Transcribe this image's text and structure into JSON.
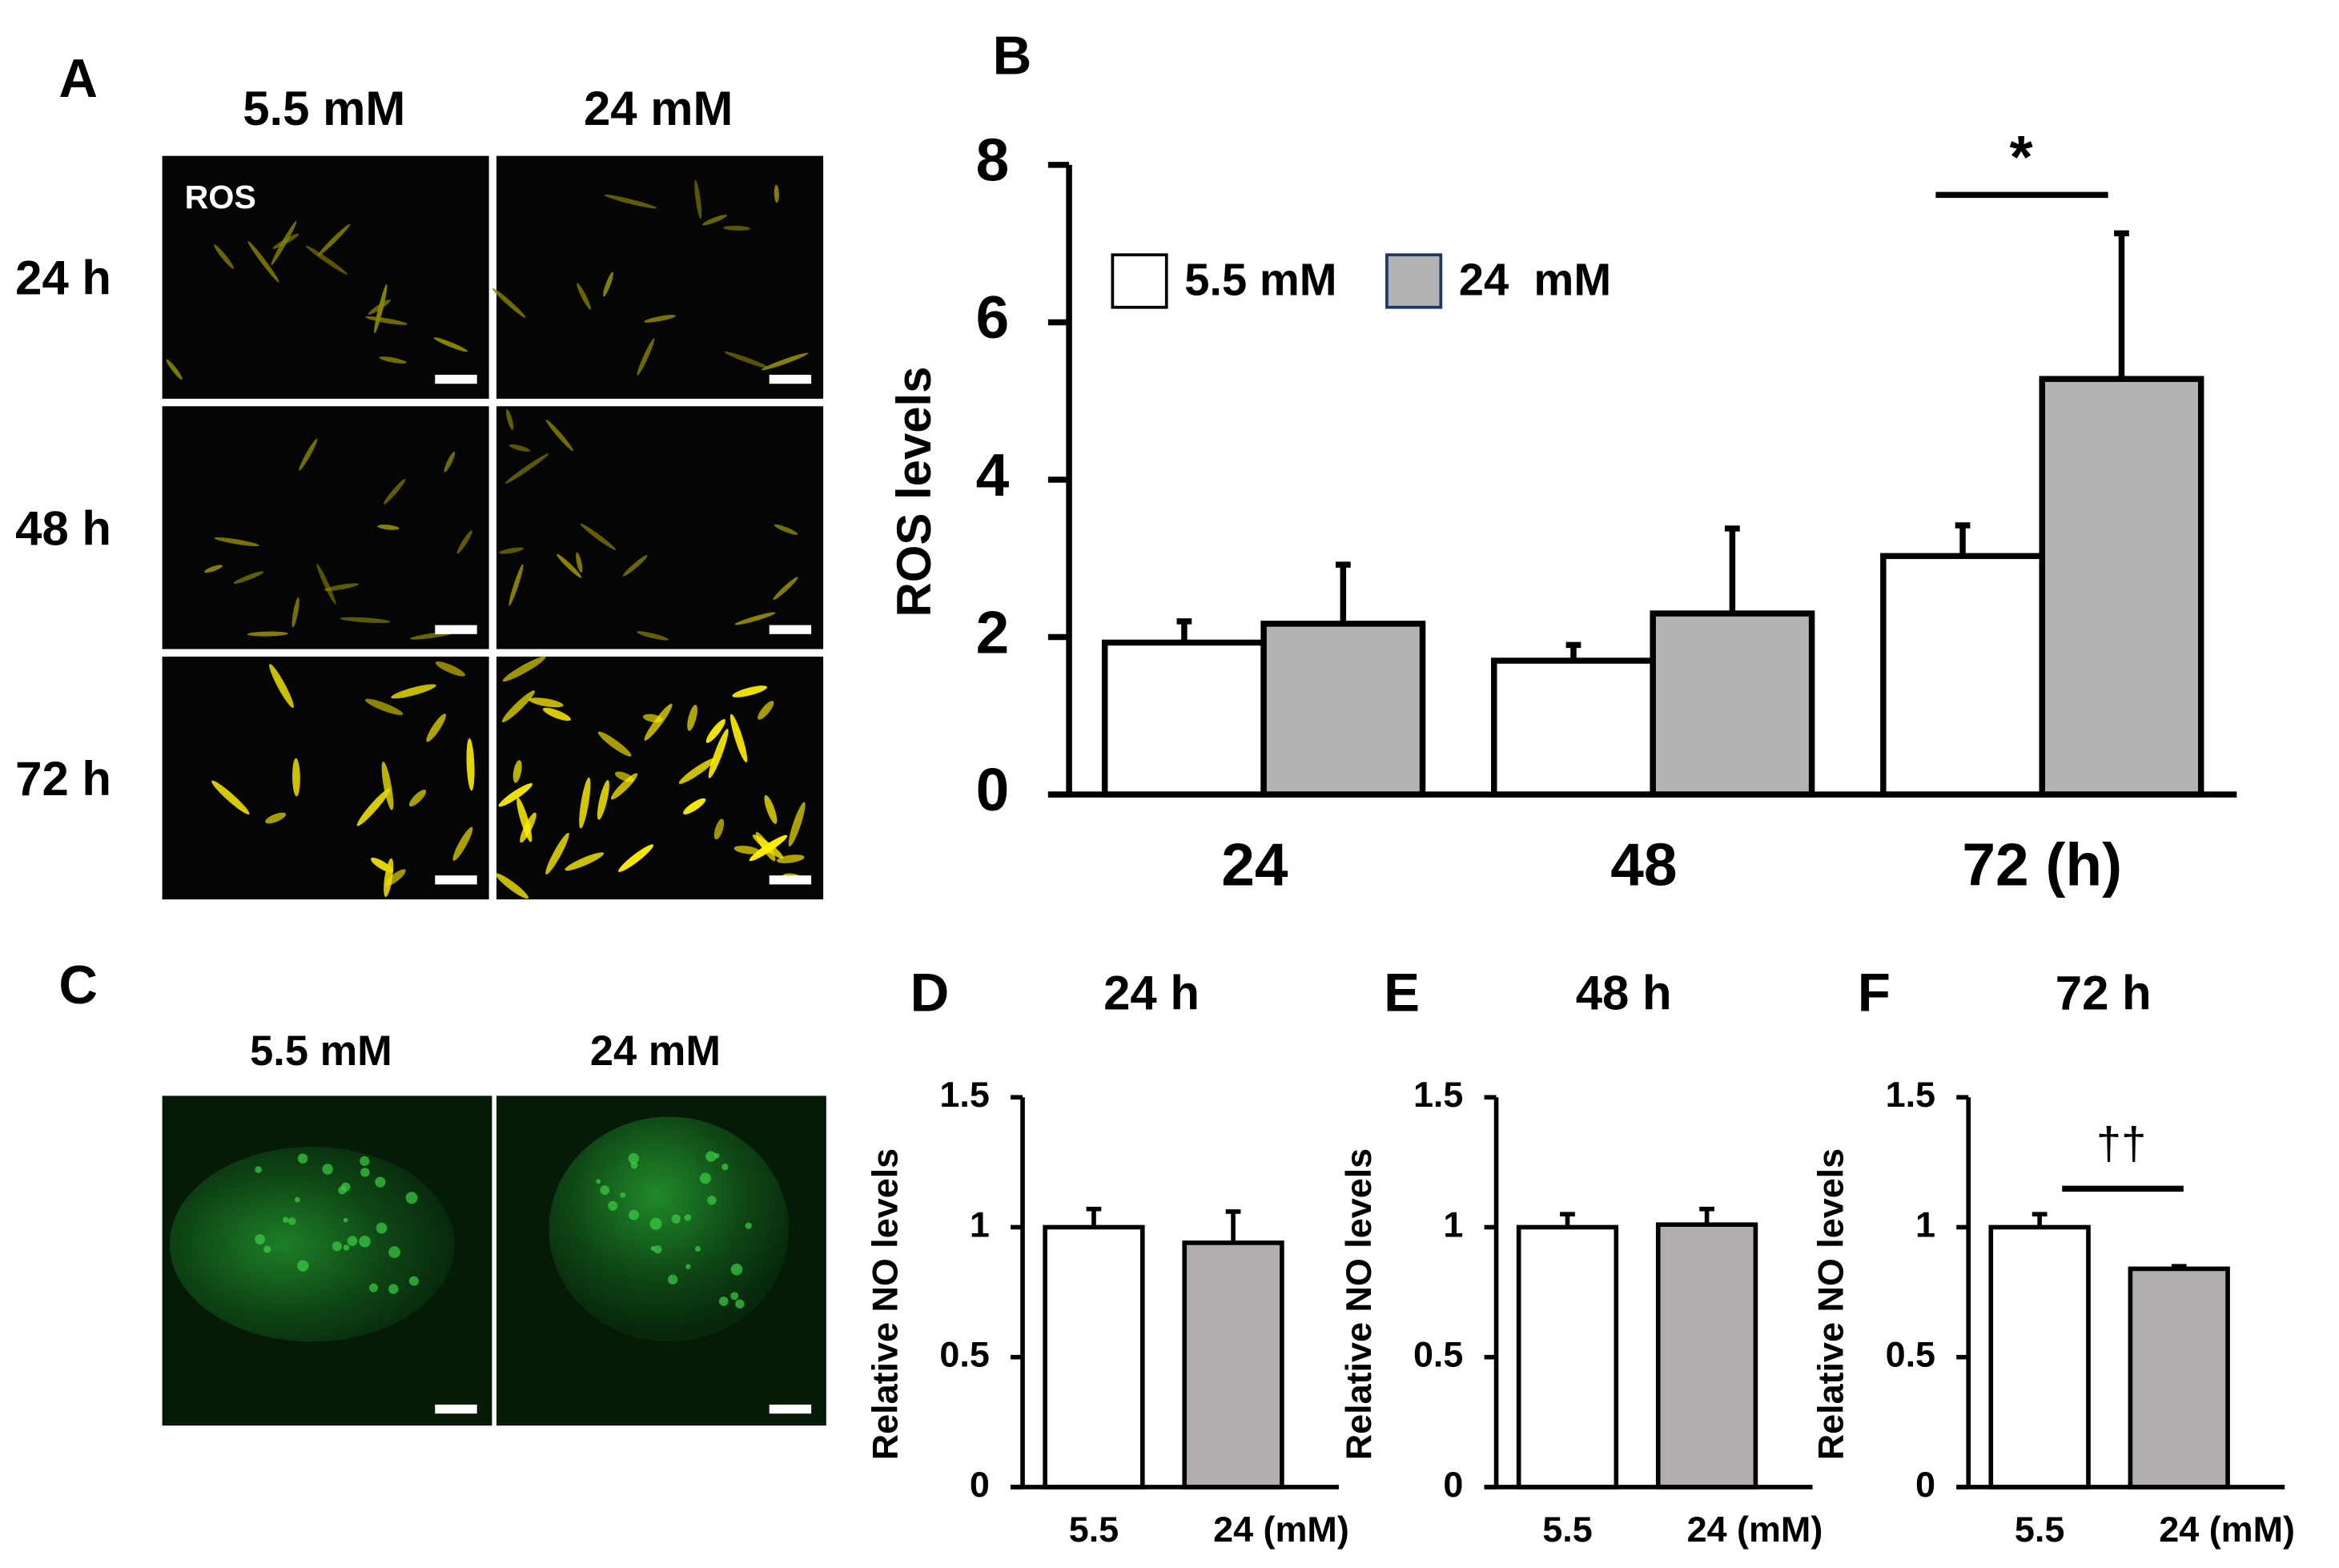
{
  "panel_a": {
    "letter": "A",
    "columns": [
      "5.5 mM",
      "24 mM"
    ],
    "rows": [
      "24 h",
      "48 h",
      "72 h"
    ],
    "stain": "ROS"
  },
  "panel_c": {
    "letter": "C",
    "columns": [
      "5.5 mM",
      "24 mM"
    ]
  },
  "chart_data": [
    {
      "type": "bar",
      "letter": "B",
      "ylabel": "ROS levels",
      "categories": [
        "24",
        "48",
        "72 (h)"
      ],
      "series": [
        {
          "name": "5.5 mM",
          "color": "#ffffff",
          "values": [
            1.93,
            1.7,
            3.03
          ],
          "errors": [
            0.27,
            0.2,
            0.39
          ]
        },
        {
          "name": "24  mM",
          "color": "#b3b3b3",
          "values": [
            2.17,
            2.3,
            5.28
          ],
          "errors": [
            0.75,
            1.08,
            1.85
          ]
        }
      ],
      "ylim": [
        0,
        8
      ],
      "yticks": [
        0,
        2,
        4,
        6,
        8
      ],
      "annotation": "*"
    },
    {
      "type": "bar",
      "letter": "D",
      "title": "24 h",
      "ylabel": "Relative NO levels",
      "categories": [
        "5.5",
        "24 (mM)"
      ],
      "values": [
        1.0,
        0.94
      ],
      "errors": [
        0.07,
        0.12
      ],
      "colors": [
        "#ffffff",
        "#b3aeae"
      ],
      "ylim": [
        0,
        1.5
      ],
      "yticks": [
        0,
        0.5,
        1,
        1.5
      ]
    },
    {
      "type": "bar",
      "letter": "E",
      "title": "48 h",
      "ylabel": "Relative NO levels",
      "categories": [
        "5.5",
        "24 (mM)"
      ],
      "values": [
        1.0,
        1.01
      ],
      "errors": [
        0.05,
        0.06
      ],
      "colors": [
        "#ffffff",
        "#b3aeae"
      ],
      "ylim": [
        0,
        1.5
      ],
      "yticks": [
        0,
        0.5,
        1,
        1.5
      ]
    },
    {
      "type": "bar",
      "letter": "F",
      "title": "72 h",
      "ylabel": "Relative NO levels",
      "categories": [
        "5.5",
        "24 (mM)"
      ],
      "values": [
        1.0,
        0.84
      ],
      "errors": [
        0.05,
        0.01
      ],
      "colors": [
        "#ffffff",
        "#b3aeae"
      ],
      "ylim": [
        0,
        1.5
      ],
      "yticks": [
        0,
        0.5,
        1,
        1.5
      ],
      "annotation": "††"
    }
  ]
}
